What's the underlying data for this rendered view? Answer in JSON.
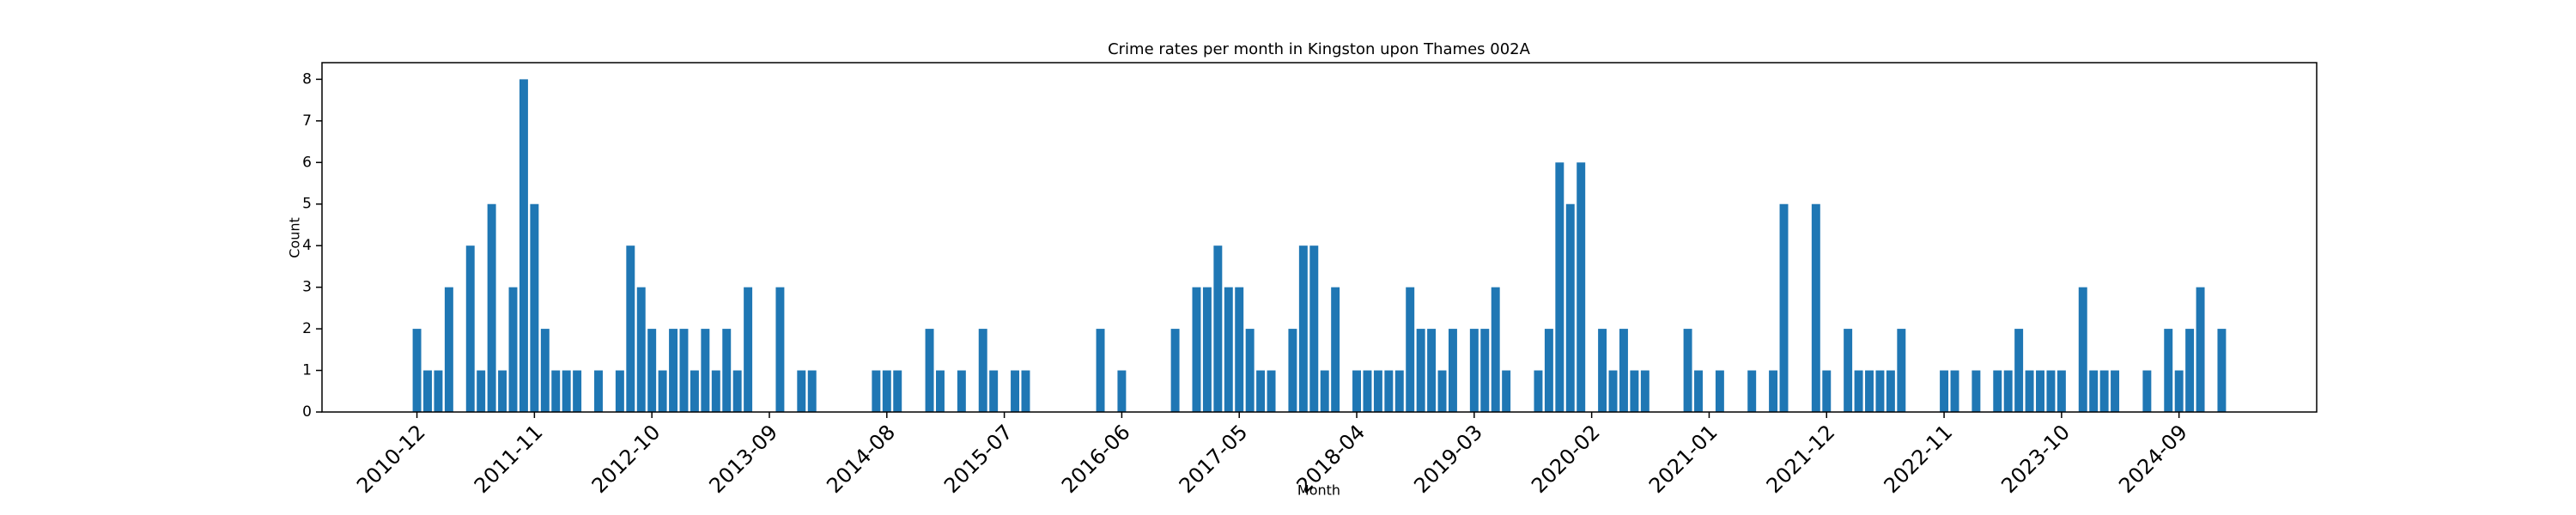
{
  "chart_data": {
    "type": "bar",
    "title": "Crime rates per month in Kingston upon Thames 002A",
    "x_label": "Month",
    "y_label": "Count",
    "color": "#1f77b4",
    "categories": [
      "2010-12",
      null,
      null,
      null,
      null,
      null,
      null,
      null,
      null,
      null,
      null,
      "2011-11",
      null,
      null,
      null,
      null,
      null,
      null,
      null,
      null,
      null,
      null,
      "2012-10",
      null,
      null,
      null,
      null,
      null,
      null,
      null,
      null,
      null,
      null,
      "2013-09",
      null,
      null,
      null,
      null,
      null,
      null,
      null,
      null,
      null,
      null,
      "2014-08",
      null,
      null,
      null,
      null,
      null,
      null,
      null,
      null,
      null,
      null,
      "2015-07",
      null,
      null,
      null,
      null,
      null,
      null,
      null,
      null,
      null,
      null,
      "2016-06",
      null,
      null,
      null,
      null,
      null,
      null,
      null,
      null,
      null,
      null,
      "2017-05",
      null,
      null,
      null,
      null,
      null,
      null,
      null,
      null,
      null,
      null,
      "2018-04",
      null,
      null,
      null,
      null,
      null,
      null,
      null,
      null,
      null,
      null,
      "2019-03",
      null,
      null,
      null,
      null,
      null,
      null,
      null,
      null,
      null,
      null,
      "2020-02",
      null,
      null,
      null,
      null,
      null,
      null,
      null,
      null,
      null,
      null,
      "2021-01",
      null,
      null,
      null,
      null,
      null,
      null,
      null,
      null,
      null,
      null,
      "2021-12",
      null,
      null,
      null,
      null,
      null,
      null,
      null,
      null,
      null,
      null,
      "2022-11",
      null,
      null,
      null,
      null,
      null,
      null,
      null,
      null,
      null,
      null,
      "2023-10",
      null,
      null,
      null,
      null,
      null,
      null,
      null,
      null,
      null,
      null,
      "2024-09",
      null,
      null,
      null,
      null
    ],
    "values": [
      2,
      1,
      1,
      3,
      0,
      4,
      1,
      5,
      1,
      3,
      8,
      5,
      2,
      1,
      1,
      1,
      0,
      1,
      0,
      1,
      4,
      3,
      2,
      1,
      2,
      2,
      1,
      2,
      1,
      2,
      1,
      3,
      0,
      0,
      3,
      0,
      1,
      1,
      0,
      0,
      0,
      0,
      0,
      1,
      1,
      1,
      0,
      0,
      2,
      1,
      0,
      1,
      0,
      2,
      1,
      0,
      1,
      1,
      0,
      0,
      0,
      0,
      0,
      0,
      2,
      0,
      1,
      0,
      0,
      0,
      0,
      2,
      0,
      3,
      3,
      4,
      3,
      3,
      2,
      1,
      1,
      0,
      2,
      4,
      4,
      1,
      3,
      0,
      1,
      1,
      1,
      1,
      1,
      3,
      2,
      2,
      1,
      2,
      0,
      2,
      2,
      3,
      1,
      0,
      0,
      1,
      2,
      6,
      5,
      6,
      0,
      2,
      1,
      2,
      1,
      1,
      0,
      0,
      0,
      2,
      1,
      0,
      1,
      0,
      0,
      1,
      0,
      1,
      5,
      0,
      0,
      5,
      1,
      0,
      2,
      1,
      1,
      1,
      1,
      2,
      0,
      0,
      0,
      1,
      1,
      0,
      1,
      0,
      1,
      1,
      2,
      1,
      1,
      1,
      1,
      0,
      3,
      1,
      1,
      1,
      0,
      0,
      1,
      0,
      2,
      1,
      2,
      3,
      0,
      2
    ],
    "ylim": [
      0,
      8.4
    ],
    "yticks": [
      0,
      1,
      2,
      3,
      4,
      5,
      6,
      7,
      8
    ],
    "grid": false
  }
}
